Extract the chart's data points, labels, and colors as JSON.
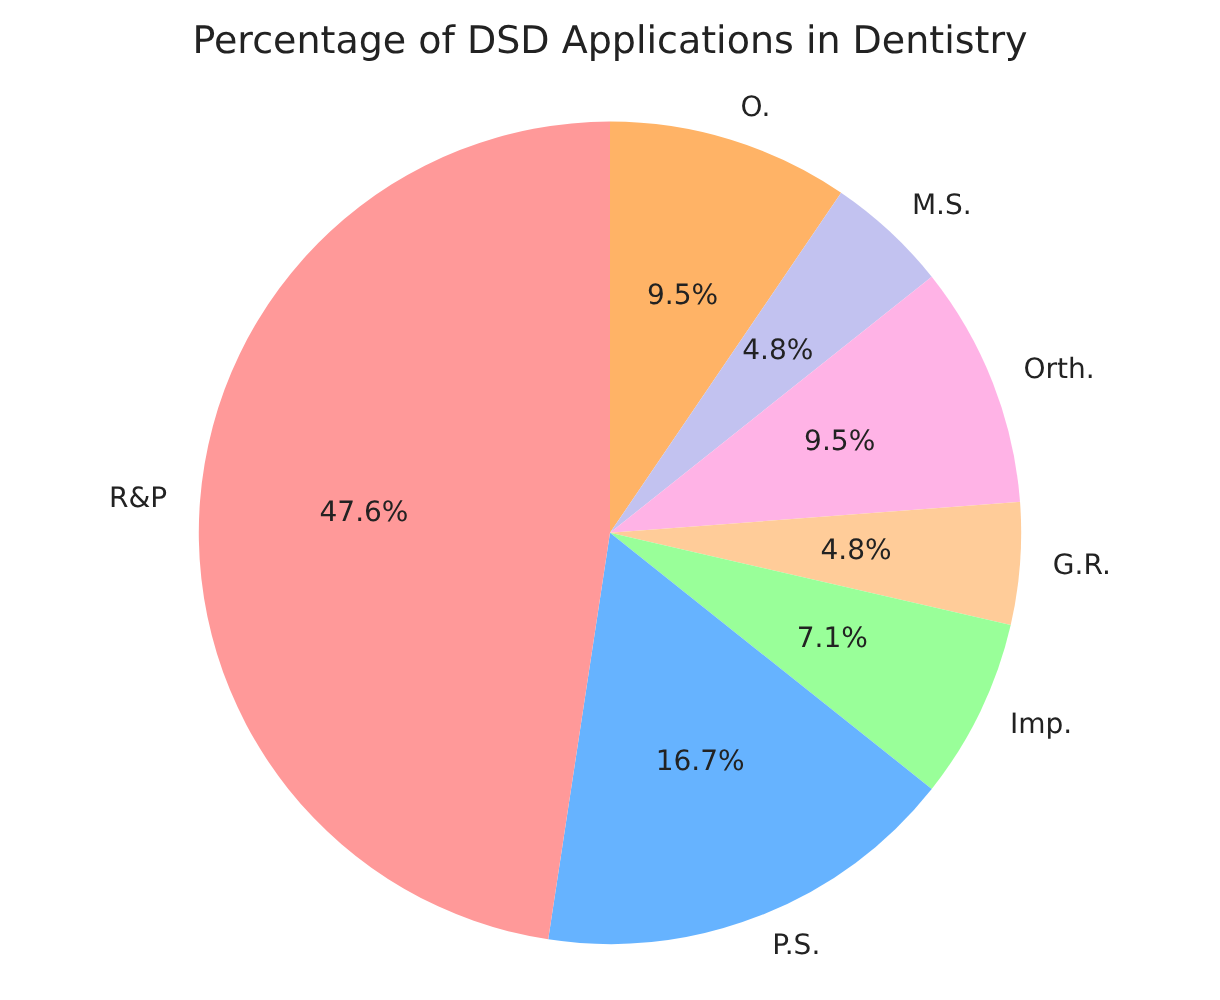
{
  "chart_data": {
    "type": "pie",
    "title": "Percentage of DSD Applications in Dentistry",
    "categories": [
      "O.",
      "M.S.",
      "Orth.",
      "G.R.",
      "Imp.",
      "P.S.",
      "R&P"
    ],
    "values": [
      9.5,
      4.8,
      9.5,
      4.8,
      7.1,
      16.7,
      47.6
    ],
    "value_labels": [
      "9.5%",
      "4.8%",
      "9.5%",
      "4.8%",
      "7.1%",
      "16.7%",
      "47.6%"
    ],
    "colors": [
      "#ffb366",
      "#c2c2f0",
      "#ffb3e6",
      "#ffcc99",
      "#99ff99",
      "#66b3ff",
      "#ff9999"
    ],
    "legend": false
  }
}
